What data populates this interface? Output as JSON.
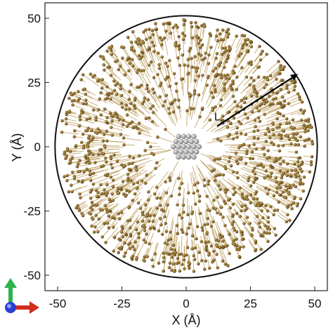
{
  "chart_data": {
    "type": "scatter",
    "xlabel": "X (Å)",
    "ylabel": "Y (Å)",
    "xlim": [
      -55,
      55
    ],
    "ylim": [
      -55,
      55
    ],
    "x_ticks": [
      "-50",
      "-25",
      "0",
      "25",
      "50"
    ],
    "y_ticks": [
      "50",
      "25",
      "0",
      "-25",
      "-50"
    ],
    "boundary_circle_radius": 51,
    "annotation": {
      "label_main": "L",
      "label_sub": "d",
      "arrow_from": [
        12,
        8
      ],
      "arrow_to": [
        43,
        28
      ]
    },
    "core_cluster": {
      "center": [
        0,
        0
      ],
      "radius": 5
    },
    "grid": false,
    "legend": "none"
  },
  "colors": {
    "particle": "#7a5a1e",
    "particle_highlight": "#c9a860",
    "displacement": "#b89a58",
    "core_atom": "#b5b5b5",
    "frame": "#222222",
    "axis_y": "#2db34a",
    "axis_x": "#d22d1e",
    "axis_z": "#2a3fd6"
  }
}
